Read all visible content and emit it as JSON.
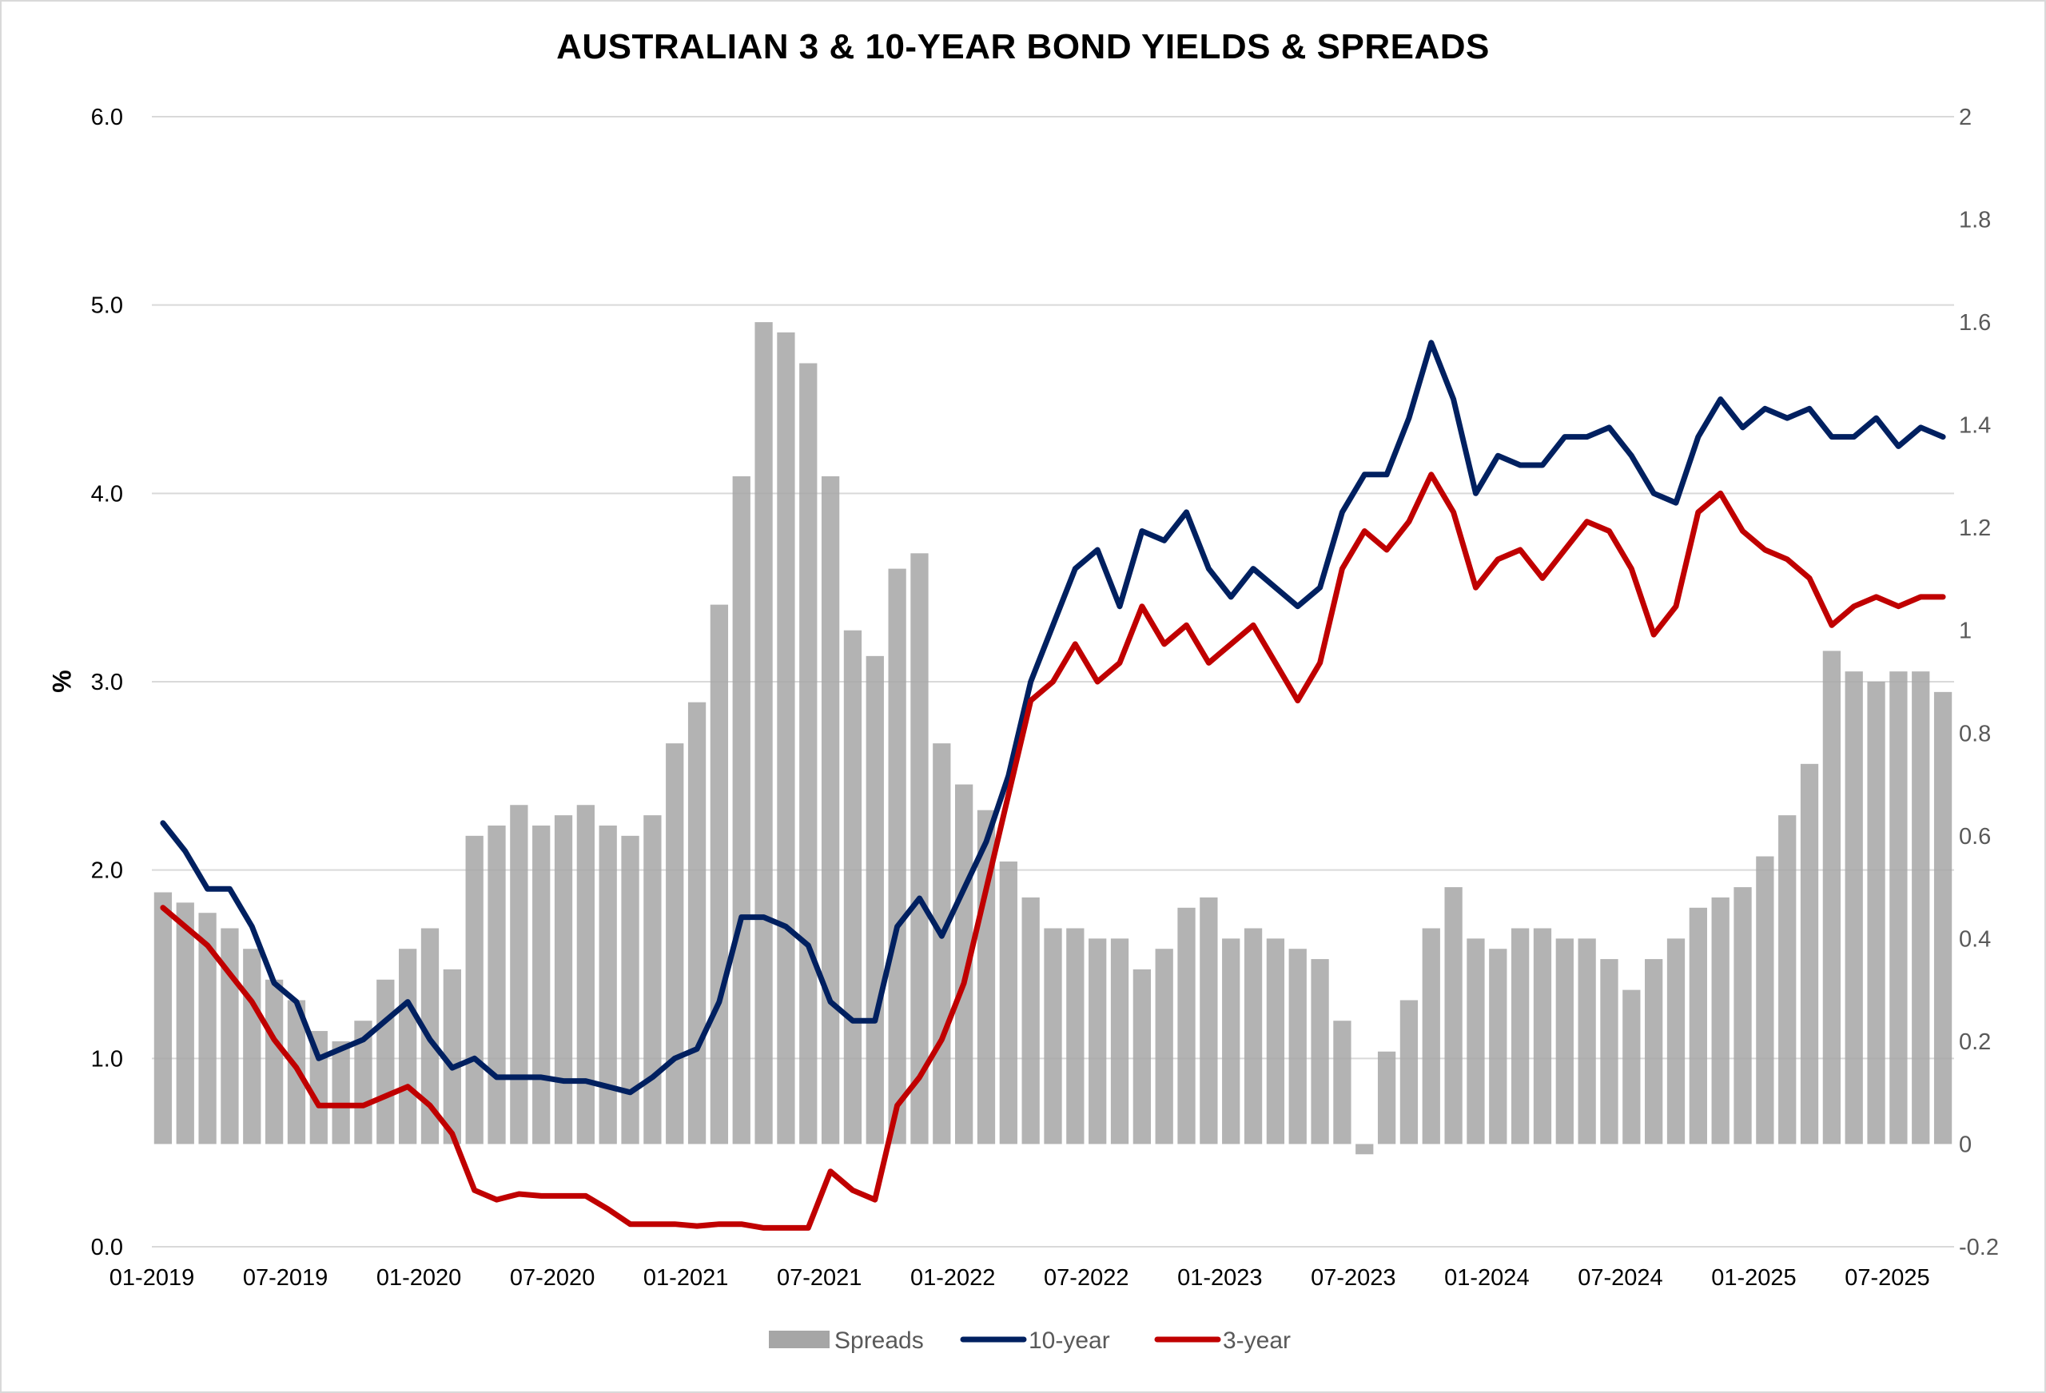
{
  "chart_data": {
    "type": "line",
    "title": "AUSTRALIAN 3 & 10-YEAR BOND YIELDS & SPREADS",
    "ylabel": "%",
    "ylim": [
      0.0,
      6.0
    ],
    "y_ticks": [
      "0.0",
      "1.0",
      "2.0",
      "3.0",
      "4.0",
      "5.0",
      "6.0"
    ],
    "y2lim": [
      -0.2,
      2.0
    ],
    "y2_ticks": [
      "-0.2",
      "0",
      "0.2",
      "0.4",
      "0.6",
      "0.8",
      "1",
      "1.2",
      "1.4",
      "1.6",
      "1.8",
      "2"
    ],
    "x_ticks": [
      "01-2019",
      "07-2019",
      "01-2020",
      "07-2020",
      "01-2021",
      "07-2021",
      "01-2022",
      "07-2022",
      "01-2023",
      "07-2023",
      "01-2024",
      "07-2024",
      "01-2025",
      "07-2025"
    ],
    "grid": true,
    "legend_position": "bottom",
    "x": [
      "2019-01",
      "2019-02",
      "2019-03",
      "2019-04",
      "2019-05",
      "2019-06",
      "2019-07",
      "2019-08",
      "2019-09",
      "2019-10",
      "2019-11",
      "2019-12",
      "2020-01",
      "2020-02",
      "2020-03",
      "2020-04",
      "2020-05",
      "2020-06",
      "2020-07",
      "2020-08",
      "2020-09",
      "2020-10",
      "2020-11",
      "2020-12",
      "2021-01",
      "2021-02",
      "2021-03",
      "2021-04",
      "2021-05",
      "2021-06",
      "2021-07",
      "2021-08",
      "2021-09",
      "2021-10",
      "2021-11",
      "2021-12",
      "2022-01",
      "2022-02",
      "2022-03",
      "2022-04",
      "2022-05",
      "2022-06",
      "2022-07",
      "2022-08",
      "2022-09",
      "2022-10",
      "2022-11",
      "2022-12",
      "2023-01",
      "2023-02",
      "2023-03",
      "2023-04",
      "2023-05",
      "2023-06",
      "2023-07",
      "2023-08",
      "2023-09",
      "2023-10",
      "2023-11",
      "2023-12",
      "2024-01",
      "2024-02",
      "2024-03",
      "2024-04",
      "2024-05",
      "2024-06",
      "2024-07",
      "2024-08",
      "2024-09",
      "2024-10",
      "2024-11",
      "2024-12",
      "2025-01",
      "2025-02",
      "2025-03",
      "2025-04",
      "2025-05",
      "2025-06",
      "2025-07",
      "2025-08",
      "2025-09"
    ],
    "series": [
      {
        "name": "Spreads",
        "type": "bar",
        "axis": "right",
        "color": "#a6a6a6",
        "values": [
          0.49,
          0.47,
          0.45,
          0.42,
          0.38,
          0.32,
          0.28,
          0.22,
          0.2,
          0.24,
          0.32,
          0.38,
          0.42,
          0.34,
          0.6,
          0.62,
          0.66,
          0.62,
          0.64,
          0.66,
          0.62,
          0.6,
          0.64,
          0.78,
          0.86,
          1.05,
          1.3,
          1.6,
          1.58,
          1.52,
          1.3,
          1.0,
          0.95,
          1.12,
          1.15,
          0.78,
          0.7,
          0.65,
          0.55,
          0.48,
          0.42,
          0.42,
          0.4,
          0.4,
          0.34,
          0.38,
          0.46,
          0.48,
          0.4,
          0.42,
          0.4,
          0.38,
          0.36,
          0.24,
          -0.02,
          0.18,
          0.28,
          0.42,
          0.5,
          0.4,
          0.38,
          0.42,
          0.42,
          0.4,
          0.4,
          0.36,
          0.3,
          0.36,
          0.4,
          0.46,
          0.48,
          0.5,
          0.56,
          0.64,
          0.74,
          0.96,
          0.92,
          0.9,
          0.92,
          0.92,
          0.88
        ]
      },
      {
        "name": "10-year",
        "type": "line",
        "axis": "left",
        "color": "#002060",
        "values": [
          2.25,
          2.1,
          1.9,
          1.9,
          1.7,
          1.4,
          1.3,
          1.0,
          1.05,
          1.1,
          1.2,
          1.3,
          1.1,
          0.95,
          1.0,
          0.9,
          0.9,
          0.9,
          0.88,
          0.88,
          0.85,
          0.82,
          0.9,
          1.0,
          1.05,
          1.3,
          1.75,
          1.75,
          1.7,
          1.6,
          1.3,
          1.2,
          1.2,
          1.7,
          1.85,
          1.65,
          1.9,
          2.15,
          2.5,
          3.0,
          3.3,
          3.6,
          3.7,
          3.4,
          3.8,
          3.75,
          3.9,
          3.6,
          3.45,
          3.6,
          3.5,
          3.4,
          3.5,
          3.9,
          4.1,
          4.1,
          4.4,
          4.8,
          4.5,
          4.0,
          4.2,
          4.15,
          4.15,
          4.3,
          4.3,
          4.35,
          4.2,
          4.0,
          3.95,
          4.3,
          4.5,
          4.35,
          4.45,
          4.4,
          4.45,
          4.3,
          4.3,
          4.4,
          4.25,
          4.35,
          4.3
        ]
      },
      {
        "name": "3-year",
        "type": "line",
        "axis": "left",
        "color": "#c00000",
        "values": [
          1.8,
          1.7,
          1.6,
          1.45,
          1.3,
          1.1,
          0.95,
          0.75,
          0.75,
          0.75,
          0.8,
          0.85,
          0.75,
          0.6,
          0.3,
          0.25,
          0.28,
          0.27,
          0.27,
          0.27,
          0.2,
          0.12,
          0.12,
          0.12,
          0.11,
          0.12,
          0.12,
          0.1,
          0.1,
          0.1,
          0.4,
          0.3,
          0.25,
          0.75,
          0.9,
          1.1,
          1.4,
          1.9,
          2.4,
          2.9,
          3.0,
          3.2,
          3.0,
          3.1,
          3.4,
          3.2,
          3.3,
          3.1,
          3.2,
          3.3,
          3.1,
          2.9,
          3.1,
          3.6,
          3.8,
          3.7,
          3.85,
          4.1,
          3.9,
          3.5,
          3.65,
          3.7,
          3.55,
          3.7,
          3.85,
          3.8,
          3.6,
          3.25,
          3.4,
          3.9,
          4.0,
          3.8,
          3.7,
          3.65,
          3.55,
          3.3,
          3.4,
          3.45,
          3.4,
          3.45,
          3.45
        ]
      }
    ]
  }
}
